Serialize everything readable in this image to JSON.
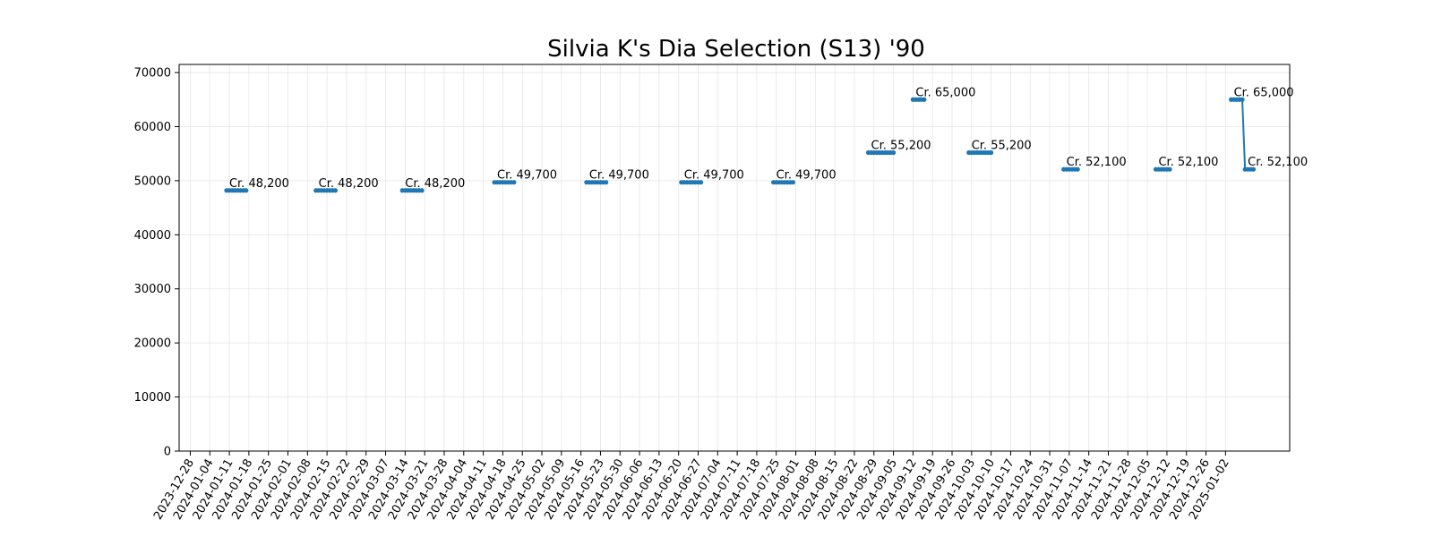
{
  "chart_data": {
    "type": "line",
    "title": "Silvia K's Dia Selection (S13) '90",
    "xlabel": "",
    "ylabel": "",
    "ylim": [
      0,
      71500
    ],
    "xlim": [
      "2023-12-24",
      "2025-01-25"
    ],
    "grid": true,
    "color": "#1f77b4",
    "y_ticks": [
      0,
      10000,
      20000,
      30000,
      40000,
      50000,
      60000,
      70000
    ],
    "x_ticks": [
      "2023-12-28",
      "2024-01-04",
      "2024-01-11",
      "2024-01-18",
      "2024-01-25",
      "2024-02-01",
      "2024-02-08",
      "2024-02-15",
      "2024-02-22",
      "2024-02-29",
      "2024-03-07",
      "2024-03-14",
      "2024-03-21",
      "2024-03-28",
      "2024-04-04",
      "2024-04-11",
      "2024-04-18",
      "2024-04-25",
      "2024-05-02",
      "2024-05-09",
      "2024-05-16",
      "2024-05-23",
      "2024-05-30",
      "2024-06-06",
      "2024-06-13",
      "2024-06-20",
      "2024-06-27",
      "2024-07-04",
      "2024-07-11",
      "2024-07-18",
      "2024-07-25",
      "2024-08-01",
      "2024-08-08",
      "2024-08-15",
      "2024-08-22",
      "2024-08-29",
      "2024-09-05",
      "2024-09-12",
      "2024-09-19",
      "2024-09-26",
      "2024-10-03",
      "2024-10-10",
      "2024-10-17",
      "2024-10-24",
      "2024-10-31",
      "2024-11-07",
      "2024-11-14",
      "2024-11-21",
      "2024-11-28",
      "2024-12-05",
      "2024-12-12",
      "2024-12-19",
      "2024-12-26",
      "2025-01-02"
    ],
    "segments": [
      {
        "points": [
          [
            "2024-01-10",
            48200
          ],
          [
            "2024-01-11",
            48200
          ],
          [
            "2024-01-12",
            48200
          ],
          [
            "2024-01-13",
            48200
          ],
          [
            "2024-01-14",
            48200
          ],
          [
            "2024-01-15",
            48200
          ],
          [
            "2024-01-16",
            48200
          ],
          [
            "2024-01-17",
            48200
          ]
        ],
        "label": "Cr. 48,200"
      },
      {
        "points": [
          [
            "2024-02-11",
            48200
          ],
          [
            "2024-02-12",
            48200
          ],
          [
            "2024-02-13",
            48200
          ],
          [
            "2024-02-14",
            48200
          ],
          [
            "2024-02-15",
            48200
          ],
          [
            "2024-02-16",
            48200
          ],
          [
            "2024-02-17",
            48200
          ],
          [
            "2024-02-18",
            48200
          ]
        ],
        "label": "Cr. 48,200"
      },
      {
        "points": [
          [
            "2024-03-13",
            48200
          ],
          [
            "2024-03-14",
            48200
          ],
          [
            "2024-03-15",
            48200
          ],
          [
            "2024-03-16",
            48200
          ],
          [
            "2024-03-17",
            48200
          ],
          [
            "2024-03-18",
            48200
          ],
          [
            "2024-03-19",
            48200
          ],
          [
            "2024-03-20",
            48200
          ]
        ],
        "label": "Cr. 48,200"
      },
      {
        "points": [
          [
            "2024-04-15",
            49700
          ],
          [
            "2024-04-16",
            49700
          ],
          [
            "2024-04-17",
            49700
          ],
          [
            "2024-04-18",
            49700
          ],
          [
            "2024-04-19",
            49700
          ],
          [
            "2024-04-20",
            49700
          ],
          [
            "2024-04-21",
            49700
          ],
          [
            "2024-04-22",
            49700
          ]
        ],
        "label": "Cr. 49,700"
      },
      {
        "points": [
          [
            "2024-05-18",
            49700
          ],
          [
            "2024-05-19",
            49700
          ],
          [
            "2024-05-20",
            49700
          ],
          [
            "2024-05-21",
            49700
          ],
          [
            "2024-05-22",
            49700
          ],
          [
            "2024-05-23",
            49700
          ],
          [
            "2024-05-24",
            49700
          ],
          [
            "2024-05-25",
            49700
          ]
        ],
        "label": "Cr. 49,700"
      },
      {
        "points": [
          [
            "2024-06-21",
            49700
          ],
          [
            "2024-06-22",
            49700
          ],
          [
            "2024-06-23",
            49700
          ],
          [
            "2024-06-24",
            49700
          ],
          [
            "2024-06-25",
            49700
          ],
          [
            "2024-06-26",
            49700
          ],
          [
            "2024-06-27",
            49700
          ],
          [
            "2024-06-28",
            49700
          ]
        ],
        "label": "Cr. 49,700"
      },
      {
        "points": [
          [
            "2024-07-24",
            49700
          ],
          [
            "2024-07-25",
            49700
          ],
          [
            "2024-07-26",
            49700
          ],
          [
            "2024-07-27",
            49700
          ],
          [
            "2024-07-28",
            49700
          ],
          [
            "2024-07-29",
            49700
          ],
          [
            "2024-07-30",
            49700
          ],
          [
            "2024-07-31",
            49700
          ]
        ],
        "label": "Cr. 49,700"
      },
      {
        "points": [
          [
            "2024-08-27",
            55200
          ],
          [
            "2024-08-28",
            55200
          ],
          [
            "2024-08-29",
            55200
          ],
          [
            "2024-08-30",
            55200
          ],
          [
            "2024-08-31",
            55200
          ],
          [
            "2024-09-01",
            55200
          ],
          [
            "2024-09-02",
            55200
          ],
          [
            "2024-09-03",
            55200
          ],
          [
            "2024-09-04",
            55200
          ],
          [
            "2024-09-05",
            55200
          ]
        ],
        "label": "Cr. 55,200"
      },
      {
        "points": [
          [
            "2024-09-12",
            65000
          ],
          [
            "2024-09-13",
            65000
          ],
          [
            "2024-09-14",
            65000
          ],
          [
            "2024-09-15",
            65000
          ],
          [
            "2024-09-16",
            65000
          ]
        ],
        "label": "Cr. 65,000"
      },
      {
        "points": [
          [
            "2024-10-02",
            55200
          ],
          [
            "2024-10-03",
            55200
          ],
          [
            "2024-10-04",
            55200
          ],
          [
            "2024-10-05",
            55200
          ],
          [
            "2024-10-06",
            55200
          ],
          [
            "2024-10-07",
            55200
          ],
          [
            "2024-10-08",
            55200
          ],
          [
            "2024-10-09",
            55200
          ],
          [
            "2024-10-10",
            55200
          ]
        ],
        "label": "Cr. 55,200"
      },
      {
        "points": [
          [
            "2024-11-05",
            52100
          ],
          [
            "2024-11-06",
            52100
          ],
          [
            "2024-11-07",
            52100
          ],
          [
            "2024-11-08",
            52100
          ],
          [
            "2024-11-09",
            52100
          ],
          [
            "2024-11-10",
            52100
          ]
        ],
        "label": "Cr. 52,100"
      },
      {
        "points": [
          [
            "2024-12-08",
            52100
          ],
          [
            "2024-12-09",
            52100
          ],
          [
            "2024-12-10",
            52100
          ],
          [
            "2024-12-11",
            52100
          ],
          [
            "2024-12-12",
            52100
          ],
          [
            "2024-12-13",
            52100
          ]
        ],
        "label": "Cr. 52,100"
      },
      {
        "points": [
          [
            "2025-01-04",
            65000
          ],
          [
            "2025-01-05",
            65000
          ],
          [
            "2025-01-06",
            65000
          ],
          [
            "2025-01-07",
            65000
          ],
          [
            "2025-01-08",
            65000
          ],
          [
            "2025-01-09",
            52100
          ],
          [
            "2025-01-10",
            52100
          ],
          [
            "2025-01-11",
            52100
          ],
          [
            "2025-01-12",
            52100
          ]
        ],
        "label": "Cr. 65,000",
        "label2": "Cr. 52,100"
      }
    ]
  }
}
